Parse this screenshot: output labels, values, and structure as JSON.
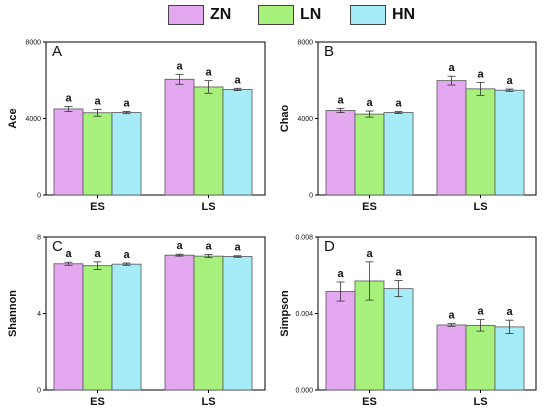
{
  "legend": [
    {
      "name": "ZN",
      "color": "#e4a8f0"
    },
    {
      "name": "LN",
      "color": "#a8f07c"
    },
    {
      "name": "HN",
      "color": "#a6ecf8"
    }
  ],
  "chart_data": [
    {
      "type": "bar",
      "panel": "A",
      "ylabel": "Ace",
      "categories": [
        "ES",
        "LS"
      ],
      "ylim": [
        0,
        8000
      ],
      "yticks": [
        0,
        4000,
        8000
      ],
      "ytick_labels": [
        "0",
        "4000",
        "8000"
      ],
      "series": [
        {
          "name": "ZN",
          "values": [
            4500,
            6050
          ],
          "errors": [
            130,
            260
          ]
        },
        {
          "name": "LN",
          "values": [
            4300,
            5650
          ],
          "errors": [
            180,
            330
          ]
        },
        {
          "name": "HN",
          "values": [
            4310,
            5520
          ],
          "errors": [
            60,
            60
          ]
        }
      ],
      "significance": [
        [
          "a",
          "a"
        ],
        [
          "a",
          "a"
        ],
        [
          "a",
          "a"
        ]
      ]
    },
    {
      "type": "bar",
      "panel": "B",
      "ylabel": "Chao",
      "categories": [
        "ES",
        "LS"
      ],
      "ylim": [
        0,
        8000
      ],
      "yticks": [
        0,
        4000,
        8000
      ],
      "ytick_labels": [
        "0",
        "4000",
        "8000"
      ],
      "series": [
        {
          "name": "ZN",
          "values": [
            4420,
            5980
          ],
          "errors": [
            110,
            230
          ]
        },
        {
          "name": "LN",
          "values": [
            4230,
            5550
          ],
          "errors": [
            160,
            340
          ]
        },
        {
          "name": "HN",
          "values": [
            4310,
            5480
          ],
          "errors": [
            50,
            60
          ]
        }
      ],
      "significance": [
        [
          "a",
          "a"
        ],
        [
          "a",
          "a"
        ],
        [
          "a",
          "a"
        ]
      ]
    },
    {
      "type": "bar",
      "panel": "C",
      "ylabel": "Shannon",
      "categories": [
        "ES",
        "LS"
      ],
      "ylim": [
        0,
        8
      ],
      "yticks": [
        0,
        4,
        8
      ],
      "ytick_labels": [
        "0",
        "4",
        "8"
      ],
      "series": [
        {
          "name": "ZN",
          "values": [
            6.6,
            7.05
          ],
          "errors": [
            0.08,
            0.05
          ]
        },
        {
          "name": "LN",
          "values": [
            6.5,
            7.0
          ],
          "errors": [
            0.2,
            0.08
          ]
        },
        {
          "name": "HN",
          "values": [
            6.58,
            6.98
          ],
          "errors": [
            0.06,
            0.04
          ]
        }
      ],
      "significance": [
        [
          "a",
          "a"
        ],
        [
          "a",
          "a"
        ],
        [
          "a",
          "a"
        ]
      ]
    },
    {
      "type": "bar",
      "panel": "D",
      "ylabel": "Simpson",
      "categories": [
        "ES",
        "LS"
      ],
      "ylim": [
        0,
        0.008
      ],
      "yticks": [
        0,
        0.004,
        0.008
      ],
      "ytick_labels": [
        "0.000",
        "0.004",
        "0.008"
      ],
      "series": [
        {
          "name": "ZN",
          "values": [
            0.00515,
            0.0034
          ],
          "errors": [
            0.0005,
            7e-05
          ]
        },
        {
          "name": "LN",
          "values": [
            0.0057,
            0.00338
          ],
          "errors": [
            0.001,
            0.0003
          ]
        },
        {
          "name": "HN",
          "values": [
            0.0053,
            0.0033
          ],
          "errors": [
            0.00042,
            0.00035
          ]
        }
      ],
      "significance": [
        [
          "a",
          "a"
        ],
        [
          "a",
          "a"
        ],
        [
          "a",
          "a"
        ]
      ]
    }
  ]
}
